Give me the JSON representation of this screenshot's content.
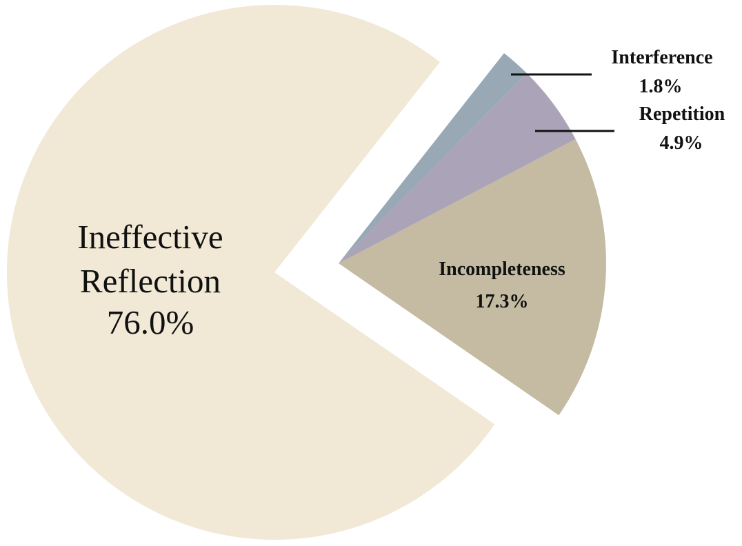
{
  "chart_data": {
    "type": "pie",
    "slices": [
      {
        "label": "Ineffective Reflection",
        "label_lines": [
          "Ineffective",
          "Reflection"
        ],
        "percent_label": "76.0%",
        "value": 76.0,
        "color": "#f1e8d6",
        "exploded": false
      },
      {
        "label": "Incompleteness",
        "label_lines": [
          "Incompleteness"
        ],
        "percent_label": "17.3%",
        "value": 17.3,
        "color": "#c5bba2",
        "exploded": true
      },
      {
        "label": "Repetition",
        "label_lines": [
          "Repetition"
        ],
        "percent_label": "4.9%",
        "value": 4.9,
        "color": "#aba3b7",
        "exploded": true
      },
      {
        "label": "Interference",
        "label_lines": [
          "Interference"
        ],
        "percent_label": "1.8%",
        "value": 1.8,
        "color": "#98a8b5",
        "exploded": true
      }
    ],
    "legend": "none",
    "leader_line_color": "#111111"
  }
}
